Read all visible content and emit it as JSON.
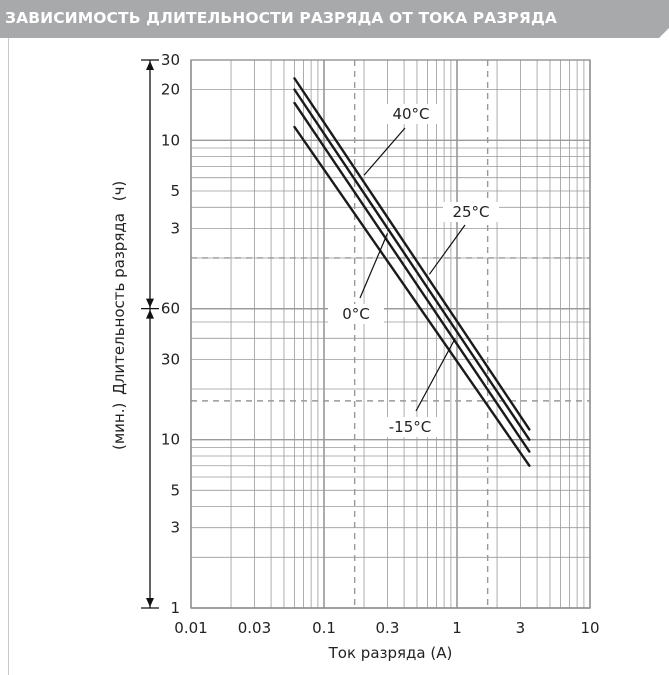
{
  "header": {
    "title": "ЗАВИСИМОСТЬ ДЛИТЕЛЬНОСТИ РАЗРЯДА ОТ ТОКА РАЗРЯДА"
  },
  "colors": {
    "header_bg": "#a8a9ab",
    "grid": "#9a9a9a",
    "curve": "#1a1a1a"
  },
  "chart_data": {
    "type": "line",
    "title": "ЗАВИСИМОСТЬ ДЛИТЕЛЬНОСТИ РАЗРЯДА ОТ ТОКА РАЗРЯДА",
    "xlabel": "Ток разряда (А)",
    "ylabel": "Длительность разряда",
    "y_unit_hours": "(ч)",
    "y_unit_minutes": "(мин.)",
    "x_scale": "log",
    "y_scale": "log",
    "xlim": [
      0.01,
      10
    ],
    "ylim_minutes": [
      1,
      1800
    ],
    "x_ticks": [
      "0.01",
      "0.03",
      "0.1",
      "0.3",
      "1",
      "3",
      "10"
    ],
    "y_ticks_minutes": [
      "1",
      "3",
      "5",
      "10",
      "30",
      "60"
    ],
    "y_ticks_hours": [
      "3",
      "5",
      "10",
      "20",
      "30"
    ],
    "grid": true,
    "series": [
      {
        "name": "40°C",
        "x": [
          0.06,
          3.5
        ],
        "y_minutes": [
          1400,
          11.5
        ]
      },
      {
        "name": "25°C",
        "x": [
          0.06,
          3.5
        ],
        "y_minutes": [
          1200,
          10
        ]
      },
      {
        "name": "0°C",
        "x": [
          0.06,
          3.5
        ],
        "y_minutes": [
          1000,
          8.5
        ]
      },
      {
        "name": "-15°C",
        "x": [
          0.06,
          3.5
        ],
        "y_minutes": [
          720,
          7
        ]
      }
    ]
  }
}
